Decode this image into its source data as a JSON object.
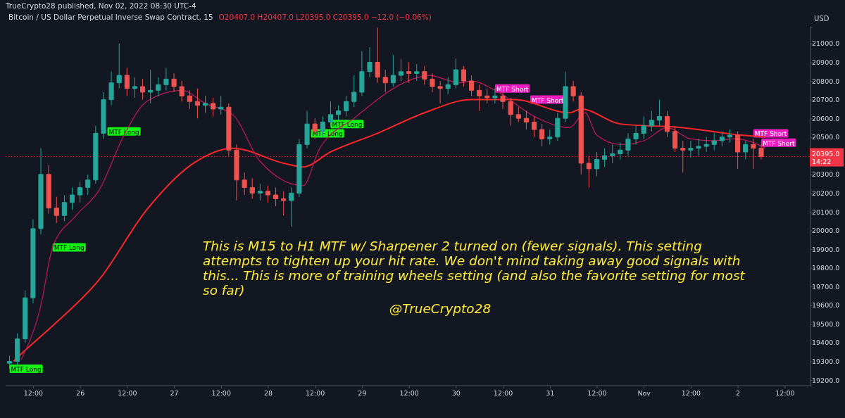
{
  "chart_data": {
    "type": "candlestick",
    "title": "Bitcoin / US Dollar Perpetual Inverse Swap Contract, 15",
    "ylabel": "USD",
    "x": [
      "2022-10-25T06:00",
      "2022-10-25T08:00",
      "2022-10-25T10:00",
      "2022-10-25T12:00",
      "2022-10-25T14:00",
      "2022-10-25T16:00",
      "2022-10-25T18:00",
      "2022-10-25T20:00",
      "2022-10-25T22:00",
      "2022-10-26T00:00",
      "2022-10-26T02:00",
      "2022-10-26T04:00",
      "2022-10-26T06:00",
      "2022-10-26T08:00",
      "2022-10-26T10:00",
      "2022-10-26T12:00",
      "2022-10-26T14:00",
      "2022-10-26T16:00",
      "2022-10-26T18:00",
      "2022-10-26T20:00",
      "2022-10-26T22:00",
      "2022-10-27T00:00",
      "2022-10-27T02:00",
      "2022-10-27T04:00",
      "2022-10-27T06:00",
      "2022-10-27T08:00",
      "2022-10-27T10:00",
      "2022-10-27T12:00",
      "2022-10-27T14:00",
      "2022-10-27T16:00",
      "2022-10-27T18:00",
      "2022-10-27T20:00",
      "2022-10-27T22:00",
      "2022-10-28T00:00",
      "2022-10-28T02:00",
      "2022-10-28T04:00",
      "2022-10-28T06:00",
      "2022-10-28T08:00",
      "2022-10-28T10:00",
      "2022-10-28T12:00",
      "2022-10-28T14:00",
      "2022-10-28T16:00",
      "2022-10-28T18:00",
      "2022-10-28T20:00",
      "2022-10-28T22:00",
      "2022-10-29T00:00",
      "2022-10-29T02:00",
      "2022-10-29T04:00",
      "2022-10-29T06:00",
      "2022-10-29T08:00",
      "2022-10-29T10:00",
      "2022-10-29T12:00",
      "2022-10-29T14:00",
      "2022-10-29T16:00",
      "2022-10-29T18:00",
      "2022-10-29T20:00",
      "2022-10-29T22:00",
      "2022-10-30T00:00",
      "2022-10-30T02:00",
      "2022-10-30T04:00",
      "2022-10-30T06:00",
      "2022-10-30T08:00",
      "2022-10-30T10:00",
      "2022-10-30T12:00",
      "2022-10-30T14:00",
      "2022-10-30T16:00",
      "2022-10-30T18:00",
      "2022-10-30T20:00",
      "2022-10-30T22:00",
      "2022-10-31T00:00",
      "2022-10-31T02:00",
      "2022-10-31T04:00",
      "2022-10-31T06:00",
      "2022-10-31T08:00",
      "2022-10-31T10:00",
      "2022-10-31T12:00",
      "2022-10-31T14:00",
      "2022-10-31T16:00",
      "2022-10-31T18:00",
      "2022-10-31T20:00",
      "2022-10-31T22:00",
      "2022-11-01T00:00",
      "2022-11-01T02:00",
      "2022-11-01T04:00",
      "2022-11-01T06:00",
      "2022-11-01T08:00",
      "2022-11-01T10:00",
      "2022-11-01T12:00",
      "2022-11-01T14:00",
      "2022-11-01T16:00",
      "2022-11-01T18:00",
      "2022-11-01T20:00",
      "2022-11-01T22:00",
      "2022-11-02T00:00",
      "2022-11-02T02:00",
      "2022-11-02T04:00",
      "2022-11-02T06:00"
    ],
    "ohlc": [
      [
        19290,
        19330,
        19260,
        19300
      ],
      [
        19300,
        19450,
        19280,
        19420
      ],
      [
        19420,
        19680,
        19400,
        19640
      ],
      [
        19640,
        20060,
        19610,
        20010
      ],
      [
        20010,
        20440,
        19980,
        20300
      ],
      [
        20300,
        20350,
        20090,
        20120
      ],
      [
        20120,
        20180,
        20040,
        20080
      ],
      [
        20080,
        20190,
        20050,
        20150
      ],
      [
        20150,
        20230,
        20110,
        20190
      ],
      [
        20190,
        20260,
        20150,
        20230
      ],
      [
        20230,
        20300,
        20190,
        20270
      ],
      [
        20270,
        20560,
        20250,
        20520
      ],
      [
        20520,
        20740,
        20490,
        20700
      ],
      [
        20700,
        20850,
        20670,
        20790
      ],
      [
        20790,
        21000,
        20760,
        20830
      ],
      [
        20830,
        20870,
        20720,
        20760
      ],
      [
        20760,
        20820,
        20710,
        20770
      ],
      [
        20770,
        20810,
        20700,
        20740
      ],
      [
        20740,
        20860,
        20680,
        20750
      ],
      [
        20750,
        20820,
        20720,
        20780
      ],
      [
        20780,
        20870,
        20750,
        20810
      ],
      [
        20810,
        20840,
        20740,
        20770
      ],
      [
        20770,
        20800,
        20690,
        20720
      ],
      [
        20720,
        20750,
        20650,
        20690
      ],
      [
        20690,
        20760,
        20600,
        20670
      ],
      [
        20670,
        20720,
        20630,
        20680
      ],
      [
        20680,
        20710,
        20610,
        20650
      ],
      [
        20650,
        20720,
        20620,
        20660
      ],
      [
        20660,
        20680,
        20400,
        20430
      ],
      [
        20430,
        20460,
        20160,
        20270
      ],
      [
        20270,
        20310,
        20190,
        20230
      ],
      [
        20230,
        20280,
        20170,
        20200
      ],
      [
        20200,
        20250,
        20160,
        20210
      ],
      [
        20210,
        20240,
        20150,
        20190
      ],
      [
        20190,
        20230,
        20130,
        20170
      ],
      [
        20170,
        20210,
        20080,
        20160
      ],
      [
        20160,
        20230,
        20020,
        20200
      ],
      [
        20200,
        20490,
        20180,
        20460
      ],
      [
        20460,
        20640,
        20440,
        20570
      ],
      [
        20570,
        20600,
        20490,
        20530
      ],
      [
        20530,
        20610,
        20500,
        20580
      ],
      [
        20580,
        20690,
        20560,
        20620
      ],
      [
        20620,
        20670,
        20590,
        20640
      ],
      [
        20640,
        20720,
        20610,
        20690
      ],
      [
        20690,
        20830,
        20660,
        20740
      ],
      [
        20740,
        20960,
        20720,
        20850
      ],
      [
        20850,
        20980,
        20820,
        20900
      ],
      [
        20900,
        21085,
        20790,
        20820
      ],
      [
        20820,
        20860,
        20740,
        20790
      ],
      [
        20790,
        20940,
        20770,
        20830
      ],
      [
        20830,
        20920,
        20800,
        20850
      ],
      [
        20850,
        20900,
        20790,
        20840
      ],
      [
        20840,
        20890,
        20800,
        20850
      ],
      [
        20850,
        20880,
        20780,
        20810
      ],
      [
        20810,
        20840,
        20740,
        20770
      ],
      [
        20770,
        20800,
        20680,
        20760
      ],
      [
        20760,
        20820,
        20730,
        20780
      ],
      [
        20780,
        20920,
        20760,
        20860
      ],
      [
        20860,
        20880,
        20770,
        20800
      ],
      [
        20800,
        20830,
        20720,
        20750
      ],
      [
        20750,
        20780,
        20640,
        20720
      ],
      [
        20720,
        20760,
        20680,
        20710
      ],
      [
        20710,
        20760,
        20680,
        20720
      ],
      [
        20720,
        20740,
        20650,
        20690
      ],
      [
        20690,
        20710,
        20560,
        20620
      ],
      [
        20620,
        20660,
        20580,
        20600
      ],
      [
        20600,
        20640,
        20540,
        20580
      ],
      [
        20580,
        20610,
        20500,
        20540
      ],
      [
        20540,
        20570,
        20450,
        20490
      ],
      [
        20490,
        20540,
        20460,
        20500
      ],
      [
        20500,
        20630,
        20480,
        20600
      ],
      [
        20600,
        20850,
        20580,
        20770
      ],
      [
        20770,
        20800,
        20690,
        20720
      ],
      [
        20720,
        20740,
        20300,
        20360
      ],
      [
        20360,
        20400,
        20230,
        20330
      ],
      [
        20330,
        20420,
        20290,
        20380
      ],
      [
        20380,
        20440,
        20340,
        20400
      ],
      [
        20400,
        20460,
        20360,
        20410
      ],
      [
        20410,
        20470,
        20380,
        20430
      ],
      [
        20430,
        20520,
        20400,
        20490
      ],
      [
        20490,
        20560,
        20460,
        20520
      ],
      [
        20520,
        20610,
        20490,
        20560
      ],
      [
        20560,
        20640,
        20530,
        20590
      ],
      [
        20590,
        20700,
        20560,
        20610
      ],
      [
        20610,
        20640,
        20500,
        20530
      ],
      [
        20530,
        20560,
        20420,
        20440
      ],
      [
        20440,
        20480,
        20310,
        20430
      ],
      [
        20430,
        20480,
        20390,
        20440
      ],
      [
        20440,
        20490,
        20400,
        20450
      ],
      [
        20450,
        20500,
        20420,
        20460
      ],
      [
        20460,
        20520,
        20430,
        20480
      ],
      [
        20480,
        20530,
        20450,
        20500
      ],
      [
        20500,
        20540,
        20470,
        20510
      ],
      [
        20510,
        20530,
        20330,
        20420
      ],
      [
        20420,
        20480,
        20380,
        20460
      ],
      [
        20460,
        20490,
        20330,
        20440
      ],
      [
        20440,
        20460,
        20380,
        20395
      ]
    ],
    "series": [
      {
        "type": "line",
        "color": "#f7272a",
        "x": [
          "2022-10-25T07:00",
          "2022-10-25T09:00",
          "2022-10-25T17:00",
          "2022-10-26T05:00",
          "2022-10-26T17:00",
          "2022-10-27T05:00",
          "2022-10-27T15:00",
          "2022-10-28T04:00",
          "2022-10-28T09:00",
          "2022-10-28T16:00",
          "2022-10-29T04:00",
          "2022-10-29T16:00",
          "2022-10-30T04:00",
          "2022-10-30T15:00",
          "2022-10-31T05:00",
          "2022-10-31T08:00",
          "2022-10-31T18:00",
          "2022-11-01T10:00",
          "2022-11-01T21:00",
          "2022-11-02T01:00",
          "2022-11-02T07:00"
        ],
        "values": [
          19300,
          19340,
          19490,
          19740,
          20110,
          20360,
          20440,
          20360,
          20340,
          20420,
          20520,
          20630,
          20700,
          20700,
          20630,
          20650,
          20570,
          20550,
          20520,
          20510,
          20500
        ]
      },
      {
        "type": "line",
        "color": "#c2185b",
        "x": [
          "2022-10-25T09:00",
          "2022-10-25T14:00",
          "2022-10-25T17:00",
          "2022-10-25T23:00",
          "2022-10-26T05:00",
          "2022-10-26T11:00",
          "2022-10-26T17:00",
          "2022-10-27T02:00",
          "2022-10-27T08:00",
          "2022-10-27T15:00",
          "2022-10-27T22:00",
          "2022-10-28T09:00",
          "2022-10-28T13:00",
          "2022-10-28T22:00",
          "2022-10-29T13:00",
          "2022-10-29T17:00",
          "2022-10-30T01:00",
          "2022-10-30T04:00",
          "2022-10-30T10:00",
          "2022-10-30T21:00",
          "2022-10-31T05:00",
          "2022-10-31T09:00",
          "2022-10-31T12:00",
          "2022-10-31T18:00",
          "2022-11-01T00:00",
          "2022-11-01T06:00",
          "2022-11-01T12:00",
          "2022-11-01T18:00",
          "2022-11-01T23:00",
          "2022-11-02T04:00",
          "2022-11-02T07:00"
        ],
        "values": [
          19310,
          19600,
          19910,
          20080,
          20220,
          20500,
          20690,
          20750,
          20680,
          20620,
          20370,
          20240,
          20430,
          20600,
          20810,
          20830,
          20790,
          20800,
          20750,
          20600,
          20550,
          20630,
          20510,
          20460,
          20480,
          20550,
          20490,
          20480,
          20490,
          20470,
          20440
        ]
      }
    ],
    "xlim": [
      "2022-10-25T05:00",
      "2022-11-02T18:25"
    ],
    "xticks": [
      {
        "value": "2022-10-25T12:00",
        "label": "12:00"
      },
      {
        "value": "2022-10-26T00:00",
        "label": "26"
      },
      {
        "value": "2022-10-26T12:00",
        "label": "12:00"
      },
      {
        "value": "2022-10-27T00:00",
        "label": "27"
      },
      {
        "value": "2022-10-27T12:00",
        "label": "12:00"
      },
      {
        "value": "2022-10-28T00:00",
        "label": "28"
      },
      {
        "value": "2022-10-28T12:00",
        "label": "12:00"
      },
      {
        "value": "2022-10-29T00:00",
        "label": "29"
      },
      {
        "value": "2022-10-29T12:00",
        "label": "12:00"
      },
      {
        "value": "2022-10-30T00:00",
        "label": "30"
      },
      {
        "value": "2022-10-30T12:00",
        "label": "12:00"
      },
      {
        "value": "2022-10-31T00:00",
        "label": "31"
      },
      {
        "value": "2022-10-31T12:00",
        "label": "12:00"
      },
      {
        "value": "2022-11-01T00:00",
        "label": "Nov"
      },
      {
        "value": "2022-11-01T12:00",
        "label": "12:00"
      },
      {
        "value": "2022-11-02T00:00",
        "label": "2"
      },
      {
        "value": "2022-11-02T12:00",
        "label": "12:00"
      }
    ],
    "ylim": [
      19170,
      21090
    ],
    "yticks": [
      {
        "value": 19200,
        "label": "19200.0"
      },
      {
        "value": 19300,
        "label": "19300.0"
      },
      {
        "value": 19400,
        "label": "19400.0"
      },
      {
        "value": 19500,
        "label": "19500.0"
      },
      {
        "value": 19600,
        "label": "19600.0"
      },
      {
        "value": 19700,
        "label": "19700.0"
      },
      {
        "value": 19800,
        "label": "19800.0"
      },
      {
        "value": 19900,
        "label": "19900.0"
      },
      {
        "value": 20000,
        "label": "20000.0"
      },
      {
        "value": 20100,
        "label": "20100.0"
      },
      {
        "value": 20200,
        "label": "20200.0"
      },
      {
        "value": 20300,
        "label": "20300.0"
      },
      {
        "value": 20500,
        "label": "20500.0"
      },
      {
        "value": 20600,
        "label": "20600.0"
      },
      {
        "value": 20700,
        "label": "20700.0"
      },
      {
        "value": 20800,
        "label": "20800.0"
      },
      {
        "value": 20900,
        "label": "20900.0"
      },
      {
        "value": 21000,
        "label": "21000.0"
      }
    ],
    "ref_lines": [
      {
        "axis": "y",
        "value": 20395,
        "label": "20395.0",
        "color": "#f23645",
        "line_style": "dotted"
      }
    ],
    "annotations": [
      "TrueCrypto28 published, Nov 02, 2022 08:30 UTC-4",
      "O20407.0 H20407.0 L20395.0 C20395.0 −12.0 (−0.06%)",
      "This is M15 to H1 MTF w/ Sharpener 2 turned on (fewer signals). This setting attempts to tighten up your hit rate. We don't mind taking away good signals with this... This is more of training wheels setting (and also the favorite setting for most so far)",
      "@TrueCrypto28",
      "14:22",
      {
        "text": "MTF Long",
        "x": "2022-10-25T06:00",
        "y": 19260
      },
      {
        "text": "MTF Long",
        "x": "2022-10-25T17:00",
        "y": 19910
      },
      {
        "text": "MTF Long",
        "x": "2022-10-26T07:00",
        "y": 20530
      },
      {
        "text": "MTF Long",
        "x": "2022-10-28T11:00",
        "y": 20520
      },
      {
        "text": "MTF Long",
        "x": "2022-10-28T16:00",
        "y": 20570
      },
      {
        "text": "MTF Short",
        "x": "2022-10-30T10:00",
        "y": 20760
      },
      {
        "text": "MTF Short",
        "x": "2022-10-30T19:00",
        "y": 20700
      },
      {
        "text": "MTF Short",
        "x": "2022-11-02T04:00",
        "y": 20520
      },
      {
        "text": "MTF Short",
        "x": "2022-11-02T06:00",
        "y": 20470
      }
    ]
  }
}
